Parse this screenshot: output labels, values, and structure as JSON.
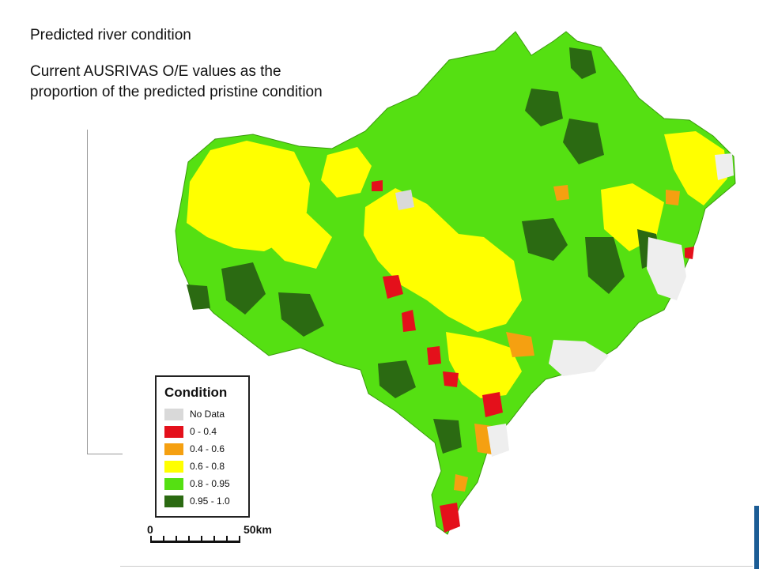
{
  "title": "Predicted river condition",
  "subtitle": "Current AUSRIVAS O/E values as the  proportion of the predicted pristine condition",
  "legend": {
    "title": "Condition",
    "items": [
      {
        "label": "No Data",
        "color": "#d9d9d9"
      },
      {
        "label": "0 - 0.4",
        "color": "#e4101b"
      },
      {
        "label": "0.4 - 0.6",
        "color": "#f5a011"
      },
      {
        "label": "0.6 - 0.8",
        "color": "#ffff00"
      },
      {
        "label": "0.8 - 0.95",
        "color": "#55e012"
      },
      {
        "label": "0.95 - 1.0",
        "color": "#2b6a12"
      }
    ]
  },
  "scale": {
    "start_label": "0",
    "end_label": "50km"
  },
  "map": {
    "region_fill_primary": "#55e012",
    "edge_color": "#1b5c95"
  }
}
